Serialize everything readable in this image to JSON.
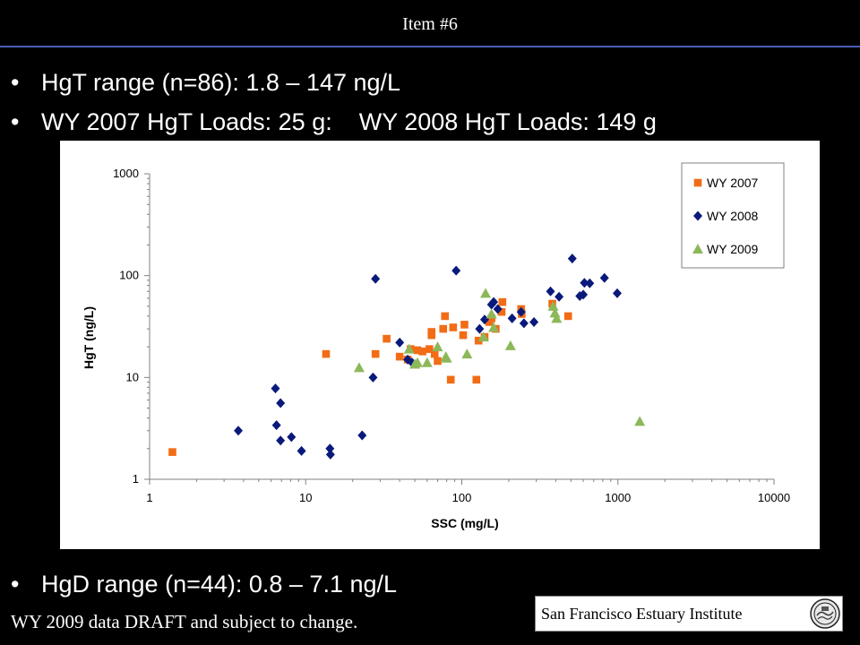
{
  "header": {
    "title": "Item #6"
  },
  "bullets": [
    {
      "marker": "•",
      "text": "HgT range (n=86): 1.8 – 147 ng/L"
    },
    {
      "marker": "•",
      "text": "WY 2007 HgT Loads: 25 g:    WY 2008 HgT Loads: 149 g"
    },
    {
      "marker": "•",
      "text": "HgD range (n=44): 0.8 – 7.1 ng/L"
    }
  ],
  "footer": {
    "note": "WY 2009 data DRAFT and subject to change."
  },
  "organization": {
    "name": "San Francisco Estuary Institute",
    "logo_icon": "sfei-logo-icon"
  },
  "colors": {
    "wy2007": "#F26C16",
    "wy2008": "#0A1A7A",
    "wy2009": "#8DB85A",
    "header_rule": "#4a5cb5"
  },
  "chart_data": {
    "type": "scatter",
    "xlabel": "SSC (mg/L)",
    "ylabel": "HgT (ng/L)",
    "xscale": "log",
    "yscale": "log",
    "xlim": [
      1,
      10000
    ],
    "ylim": [
      1,
      1000
    ],
    "x_ticks": [
      "1",
      "10",
      "100",
      "1000",
      "10000"
    ],
    "y_ticks": [
      "1",
      "10",
      "100",
      "1000"
    ],
    "grid": false,
    "legend_position": "top-right",
    "series": [
      {
        "name": "WY 2007",
        "marker": "square",
        "color": "#F26C16",
        "points": [
          [
            1.4,
            1.85
          ],
          [
            13.5,
            17
          ],
          [
            28,
            17
          ],
          [
            33,
            24
          ],
          [
            40,
            16
          ],
          [
            45,
            15
          ],
          [
            47,
            19
          ],
          [
            52,
            18.5
          ],
          [
            56,
            18
          ],
          [
            62,
            19
          ],
          [
            64,
            26
          ],
          [
            64,
            28
          ],
          [
            67,
            17
          ],
          [
            70,
            14.5
          ],
          [
            76,
            30
          ],
          [
            78,
            40
          ],
          [
            85,
            9.5
          ],
          [
            88,
            31
          ],
          [
            102,
            26
          ],
          [
            104,
            33
          ],
          [
            124,
            9.5
          ],
          [
            128,
            23
          ],
          [
            140,
            25
          ],
          [
            150,
            35
          ],
          [
            155,
            38
          ],
          [
            165,
            30
          ],
          [
            180,
            44
          ],
          [
            182,
            55
          ],
          [
            240,
            47
          ],
          [
            242,
            42
          ],
          [
            380,
            53
          ],
          [
            480,
            40
          ]
        ]
      },
      {
        "name": "WY 2008",
        "marker": "diamond",
        "color": "#0A1A7A",
        "points": [
          [
            3.7,
            3.0
          ],
          [
            6.4,
            7.8
          ],
          [
            6.5,
            3.4
          ],
          [
            6.9,
            5.6
          ],
          [
            6.9,
            2.4
          ],
          [
            8.1,
            2.6
          ],
          [
            9.4,
            1.9
          ],
          [
            14.3,
            2.0
          ],
          [
            14.4,
            1.75
          ],
          [
            23,
            2.7
          ],
          [
            27,
            10
          ],
          [
            28,
            93
          ],
          [
            40,
            22
          ],
          [
            45,
            15
          ],
          [
            48,
            14
          ],
          [
            92,
            112
          ],
          [
            130,
            30
          ],
          [
            140,
            37
          ],
          [
            155,
            52
          ],
          [
            160,
            55
          ],
          [
            170,
            47
          ],
          [
            210,
            38
          ],
          [
            240,
            44
          ],
          [
            250,
            34
          ],
          [
            290,
            35
          ],
          [
            370,
            70
          ],
          [
            420,
            62
          ],
          [
            510,
            147
          ],
          [
            570,
            63
          ],
          [
            600,
            65
          ],
          [
            610,
            85
          ],
          [
            660,
            84
          ],
          [
            820,
            95
          ],
          [
            990,
            67
          ]
        ]
      },
      {
        "name": "WY 2009",
        "marker": "triangle",
        "color": "#8DB85A",
        "points": [
          [
            22,
            12.5
          ],
          [
            46,
            19
          ],
          [
            50,
            13.5
          ],
          [
            52,
            14
          ],
          [
            60,
            14
          ],
          [
            70,
            20
          ],
          [
            79,
            16
          ],
          [
            80,
            15.5
          ],
          [
            108,
            17
          ],
          [
            138,
            25
          ],
          [
            142,
            67
          ],
          [
            155,
            42
          ],
          [
            160,
            31
          ],
          [
            205,
            20.5
          ],
          [
            385,
            50
          ],
          [
            395,
            43
          ],
          [
            405,
            38
          ],
          [
            1380,
            3.7
          ]
        ]
      }
    ]
  }
}
